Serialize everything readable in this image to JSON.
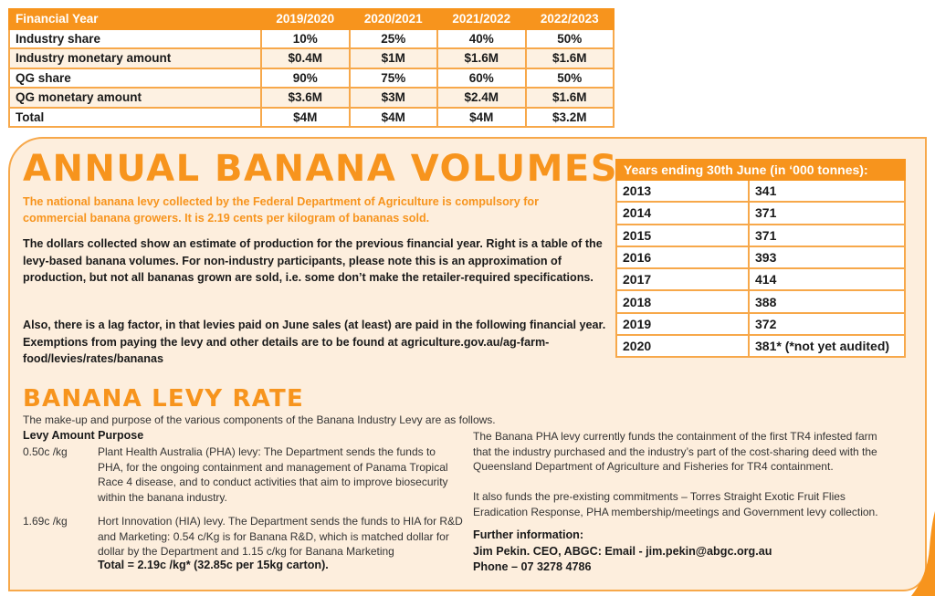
{
  "funding_table": {
    "headers": [
      "Financial Year",
      "2019/2020",
      "2020/2021",
      "2021/2022",
      "2022/2023"
    ],
    "rows": [
      [
        "Industry share",
        "10%",
        "25%",
        "40%",
        "50%"
      ],
      [
        "Industry monetary amount",
        "$0.4M",
        "$1M",
        "$1.6M",
        "$1.6M"
      ],
      [
        "QG share",
        "90%",
        "75%",
        "60%",
        "50%"
      ],
      [
        "QG monetary amount",
        "$3.6M",
        "$3M",
        "$2.4M",
        "$1.6M"
      ],
      [
        "Total",
        "$4M",
        "$4M",
        "$4M",
        "$3.2M"
      ]
    ]
  },
  "volumes": {
    "title": "ANNUAL BANANA VOLUMES",
    "intro": "The national banana levy collected by the Federal Department of Agriculture is compulsory for commercial banana growers. It is 2.19 cents per kilogram of bananas sold.",
    "p_dollars": "The dollars collected show an estimate of production for the previous financial year.  Right is a table of the levy-based banana volumes. For non-industry participants, please note this is an approximation of production, but not all bananas grown are sold, i.e. some don’t make the retailer-required specifications.",
    "p_lag": "Also, there is a lag factor, in that levies paid on June sales (at least) are paid in the following financial year. Exemptions from paying the levy and other details are to be found at agriculture.gov.au/ag-farm-food/levies/rates/bananas",
    "table_header": "Years ending 30th June (in ‘000 tonnes):",
    "rows": [
      [
        "2013",
        "341"
      ],
      [
        "2014",
        "371"
      ],
      [
        "2015",
        "371"
      ],
      [
        "2016",
        "393"
      ],
      [
        "2017",
        "414"
      ],
      [
        "2018",
        "388"
      ],
      [
        "2019",
        "372"
      ],
      [
        "2020",
        "381* (*not yet audited)"
      ]
    ]
  },
  "levy_rate": {
    "title": "BANANA LEVY RATE",
    "desc": "The make-up and purpose of the various components of the Banana Industry Levy are as follows.",
    "purpose_label": "Levy Amount Purpose",
    "pha_amount": "0.50c /kg",
    "pha_desc": "Plant Health Australia (PHA) levy: The Department sends the funds to PHA, for the ongoing containment and management of Panama Tropical Race 4 disease, and to conduct activities that aim to improve biosecurity within the banana industry.",
    "hia_amount": "1.69c /kg",
    "hia_desc": "Hort Innovation (HIA) levy. The Department sends the funds to HIA for R&D and Marketing: 0.54 c/Kg is for Banana R&D, which is matched dollar for dollar by the Department and 1.15 c/kg for Banana Marketing",
    "total": "Total = 2.19c /kg* (32.85c per 15kg carton).",
    "pha_funds": "The Banana PHA levy currently funds the containment of the first TR4 infested farm that the industry purchased and the industry’s part of the cost-sharing deed with the Queensland Department of Agriculture and Fisheries for TR4 containment.",
    "also": "It also funds the pre-existing commitments – Torres Straight Exotic Fruit Flies Eradication Response, PHA membership/meetings and Government levy collection.",
    "further_label": "Further information:",
    "contact": "Jim Pekin. CEO, ABGC: Email - jim.pekin@abgc.org.au",
    "phone": "Phone – 07 3278 4786"
  },
  "colors": {
    "accent": "#f7941d",
    "panel": "#fdeedd",
    "border": "#f7a84a"
  }
}
